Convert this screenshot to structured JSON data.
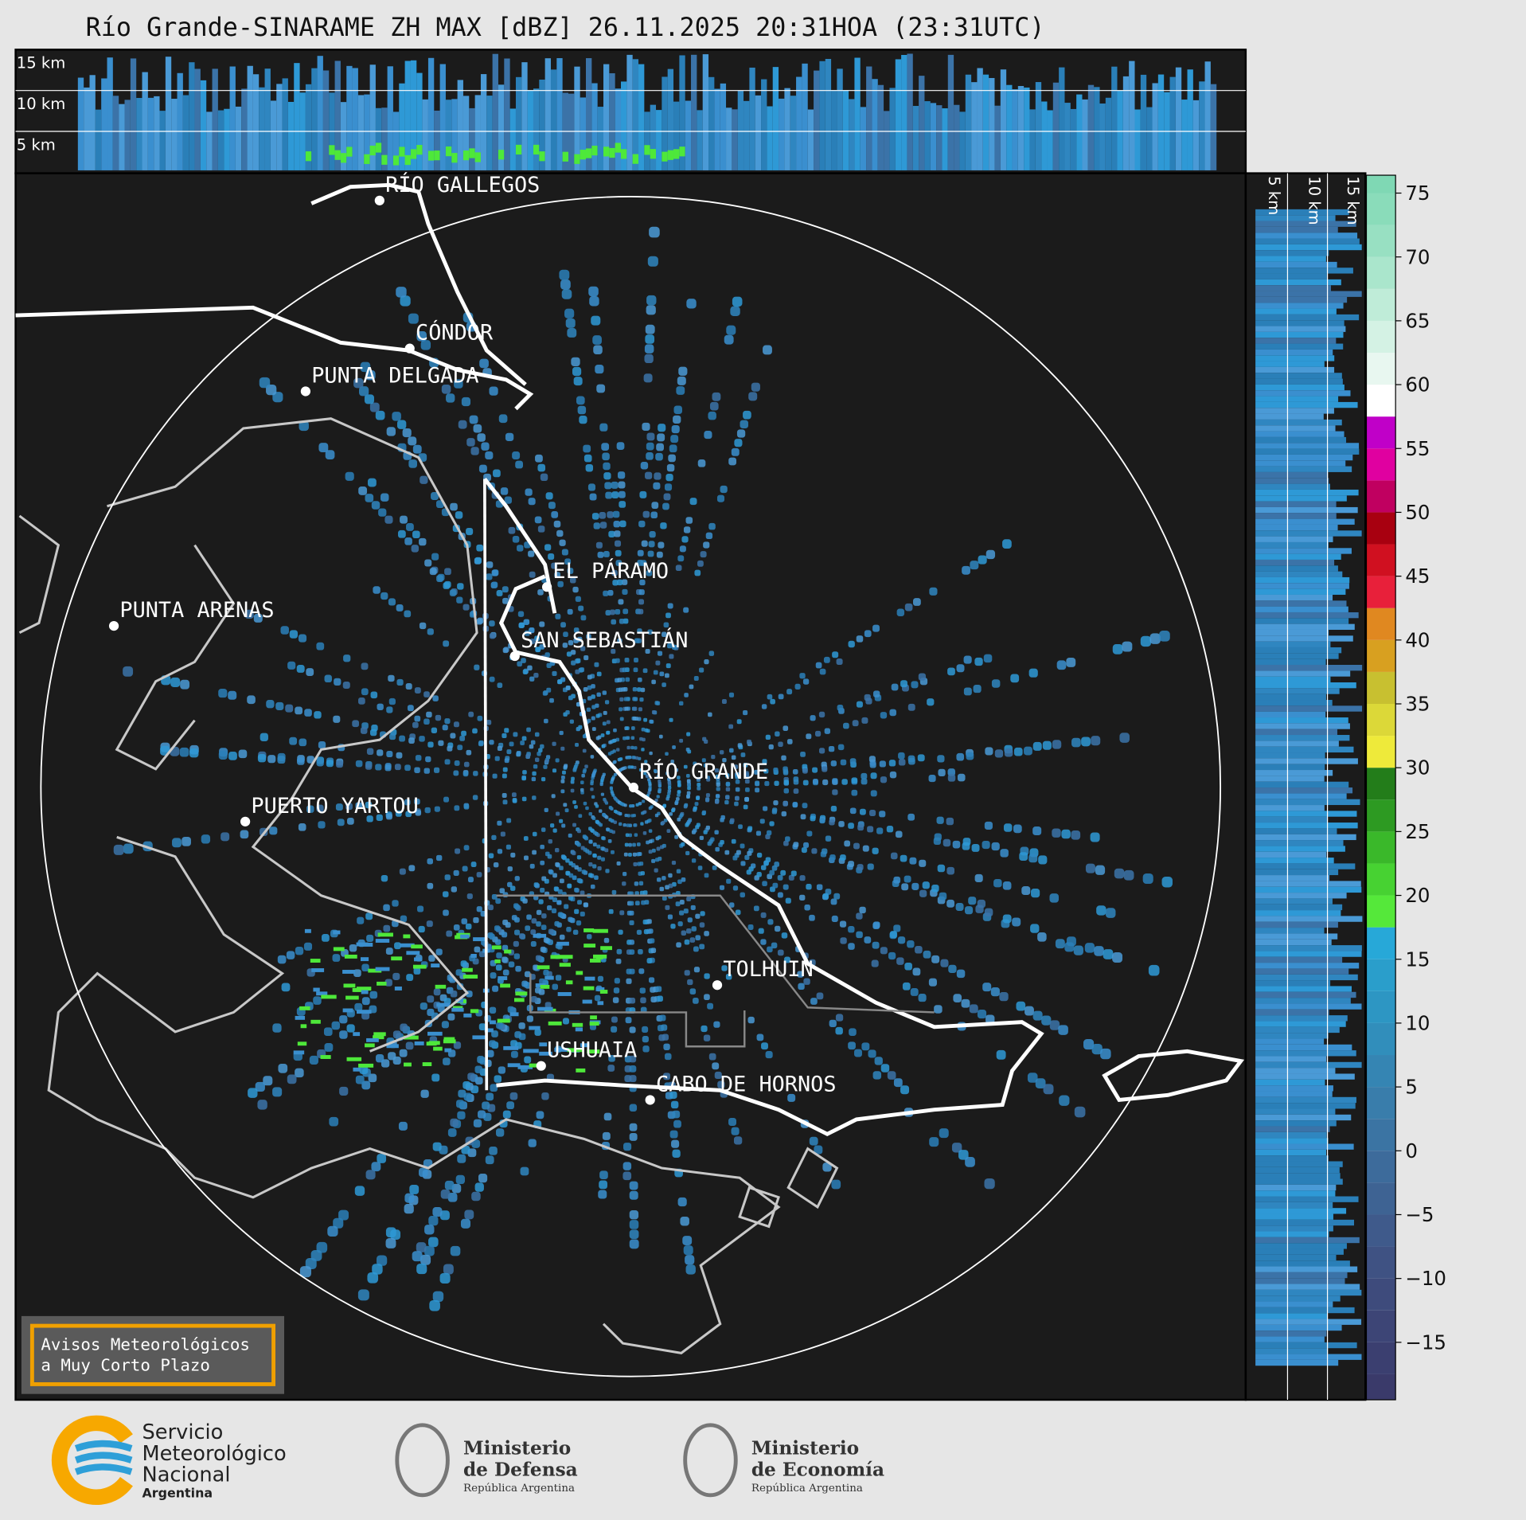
{
  "title": "Río Grande-SINARAME ZH MAX [dBZ] 26.11.2025 20:31HOA (23:31UTC)",
  "top_panel": {
    "labels": [
      "15 km",
      "10 km",
      "5 km"
    ]
  },
  "side_panel": {
    "labels": [
      "5 km",
      "10 km",
      "15 km"
    ]
  },
  "cities": [
    "RÍO GALLEGOS",
    "CÓNDOR",
    "PUNTA DELGADA",
    "EL PÁRAMO",
    "PUNTA ARENAS",
    "SAN SEBASTIÁN",
    "RÍO GRANDE",
    "PUERTO YARTOU",
    "TOLHUIN",
    "USHUAIA",
    "CABO DE HORNOS"
  ],
  "colorbar": {
    "lim": [
      -19.5,
      76.4
    ],
    "ticks": [
      {
        "value": -15,
        "label": "−15"
      },
      {
        "value": -10,
        "label": "−10"
      },
      {
        "value": -5,
        "label": "−5"
      },
      0,
      5,
      10,
      15,
      20,
      25,
      30,
      35,
      40,
      45,
      50,
      55,
      60,
      65,
      70,
      75
    ],
    "bounds": [
      -19.5,
      -17.5,
      -15,
      -12.5,
      -10,
      -7.5,
      -5,
      -2.5,
      0,
      2.5,
      5,
      7.5,
      10,
      12.5,
      15,
      17.5,
      20,
      22.5,
      25,
      27.5,
      30,
      32.5,
      35,
      37.5,
      40,
      42.5,
      45,
      47.5,
      50,
      52.5,
      55,
      57.5,
      60,
      62.5,
      65,
      67.5,
      70,
      72.5,
      75,
      76.4
    ],
    "colors": [
      "#3a3a6a",
      "#3b3f70",
      "#3d4576",
      "#3e4b7c",
      "#3f5283",
      "#3f5a8b",
      "#3e6393",
      "#3d6b9b",
      "#3b74a3",
      "#397dab",
      "#3585b3",
      "#318ebb",
      "#2d96c3",
      "#2a9ecb",
      "#27a8d8",
      "#55e83a",
      "#47d232",
      "#3ab82a",
      "#2d9a22",
      "#237d1a",
      "#eeea3a",
      "#dcd838",
      "#c8c030",
      "#d8a020",
      "#e08820",
      "#e8203a",
      "#d01020",
      "#a80010",
      "#c00060",
      "#e000a0",
      "#c000c8",
      "#ffffff",
      "#e8f7f0",
      "#d4f2e4",
      "#bfecd8",
      "#aae6cc",
      "#98e0c2",
      "#8adcba",
      "#7fd8b4"
    ]
  },
  "notice": [
    "Avisos Meteorológicos",
    "a Muy Corto Plazo"
  ],
  "logos": [
    [
      "Servicio",
      "Meteorológico",
      "Nacional",
      "Argentina"
    ],
    [
      "Ministerio",
      "de Defensa",
      "República Argentina"
    ],
    [
      "Ministerio",
      "de Economía",
      "República Argentina"
    ]
  ]
}
